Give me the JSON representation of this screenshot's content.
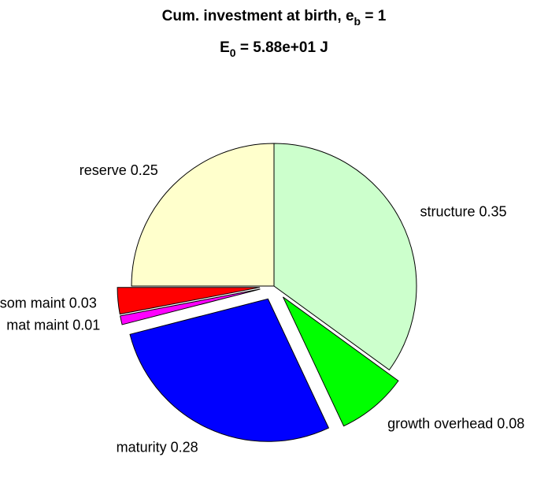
{
  "chart_data": {
    "type": "pie",
    "title": [
      "Cum. investment at birth, e",
      "b",
      " = 1"
    ],
    "subtitle": [
      "E",
      "0",
      " = 5.88e+01 J"
    ],
    "categories": [
      "structure",
      "growth overhead",
      "maturity",
      "mat maint",
      "som maint",
      "reserve"
    ],
    "values": [
      0.35,
      0.08,
      0.28,
      0.01,
      0.03,
      0.25
    ],
    "colors": [
      "#ccffcc",
      "#00ff00",
      "#0000ff",
      "#ff00ff",
      "#ff0000",
      "#ffffcc"
    ],
    "explode": [
      false,
      true,
      true,
      true,
      true,
      false
    ]
  }
}
